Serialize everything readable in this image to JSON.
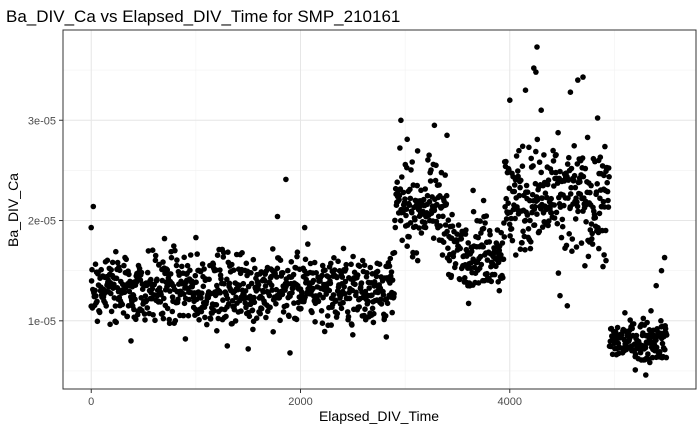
{
  "chart_data": {
    "type": "scatter",
    "title": "Ba_DIV_Ca vs Elapsed_DIV_Time for SMP_210161",
    "xlabel": "Elapsed_DIV_Time",
    "ylabel": "Ba_DIV_Ca",
    "xlim": [
      -270,
      5780
    ],
    "ylim": [
      3.2e-06,
      3.9e-05
    ],
    "x_ticks": [
      0,
      2000,
      4000
    ],
    "x_tick_labels": [
      "0",
      "2000",
      "4000"
    ],
    "y_ticks": [
      1e-05,
      2e-05,
      3e-05
    ],
    "y_tick_labels": [
      "1e-05",
      "2e-05",
      "3e-05"
    ],
    "grid": true,
    "legend": "none",
    "point_color": "#000000",
    "segments": [
      {
        "x_start": 0,
        "x_end": 2900,
        "y_mean": 1.32e-05,
        "y_spread": 2.2e-06
      },
      {
        "x_start": 2900,
        "x_end": 3400,
        "y_mean": 2.15e-05,
        "y_spread": 2.5e-06
      },
      {
        "x_start": 3400,
        "x_end": 3950,
        "y_mean": 1.7e-05,
        "y_spread": 2.2e-06
      },
      {
        "x_start": 3950,
        "x_end": 4950,
        "y_mean": 2.2e-05,
        "y_spread": 3.5e-06
      },
      {
        "x_start": 4950,
        "x_end": 5500,
        "y_mean": 8e-06,
        "y_spread": 1.2e-06
      }
    ],
    "points": [
      {
        "x": 20,
        "y": 2.14e-05
      },
      {
        "x": 0,
        "y": 1.93e-05
      },
      {
        "x": 1860,
        "y": 2.41e-05
      },
      {
        "x": 1780,
        "y": 2.04e-05
      },
      {
        "x": 2040,
        "y": 1.93e-05
      },
      {
        "x": 2960,
        "y": 3e-05
      },
      {
        "x": 3020,
        "y": 2.81e-05
      },
      {
        "x": 3280,
        "y": 2.95e-05
      },
      {
        "x": 3400,
        "y": 2.85e-05
      },
      {
        "x": 4260,
        "y": 3.73e-05
      },
      {
        "x": 4230,
        "y": 3.52e-05
      },
      {
        "x": 4250,
        "y": 3.48e-05
      },
      {
        "x": 4150,
        "y": 3.3e-05
      },
      {
        "x": 4000,
        "y": 3.2e-05
      },
      {
        "x": 4700,
        "y": 3.43e-05
      },
      {
        "x": 4650,
        "y": 3.4e-05
      },
      {
        "x": 4580,
        "y": 3.28e-05
      },
      {
        "x": 4300,
        "y": 3.1e-05
      },
      {
        "x": 1900,
        "y": 6.8e-06
      },
      {
        "x": 1500,
        "y": 7.2e-06
      },
      {
        "x": 1300,
        "y": 7.5e-06
      },
      {
        "x": 380,
        "y": 8e-06
      },
      {
        "x": 4550,
        "y": 1.15e-05
      },
      {
        "x": 4480,
        "y": 1.25e-05
      },
      {
        "x": 3900,
        "y": 1.3e-05
      },
      {
        "x": 3120,
        "y": 1.6e-05
      },
      {
        "x": 3600,
        "y": 1.35e-05
      },
      {
        "x": 5300,
        "y": 4.6e-06
      },
      {
        "x": 5200,
        "y": 5.1e-06
      },
      {
        "x": 5480,
        "y": 1.63e-05
      },
      {
        "x": 5450,
        "y": 1.5e-05
      },
      {
        "x": 5400,
        "y": 1.35e-05
      },
      {
        "x": 5350,
        "y": 1.1e-05
      },
      {
        "x": 5100,
        "y": 1.08e-05
      },
      {
        "x": 2820,
        "y": 8.4e-06
      },
      {
        "x": 2500,
        "y": 8.6e-06
      },
      {
        "x": 900,
        "y": 8.2e-06
      },
      {
        "x": 1200,
        "y": 9e-06
      },
      {
        "x": 700,
        "y": 1.82e-05
      },
      {
        "x": 1000,
        "y": 1.83e-05
      },
      {
        "x": 3650,
        "y": 2.3e-05
      },
      {
        "x": 3750,
        "y": 2.2e-05
      },
      {
        "x": 4850,
        "y": 2.6e-05
      },
      {
        "x": 4900,
        "y": 2.45e-05
      },
      {
        "x": 4920,
        "y": 1.6e-05
      }
    ]
  }
}
